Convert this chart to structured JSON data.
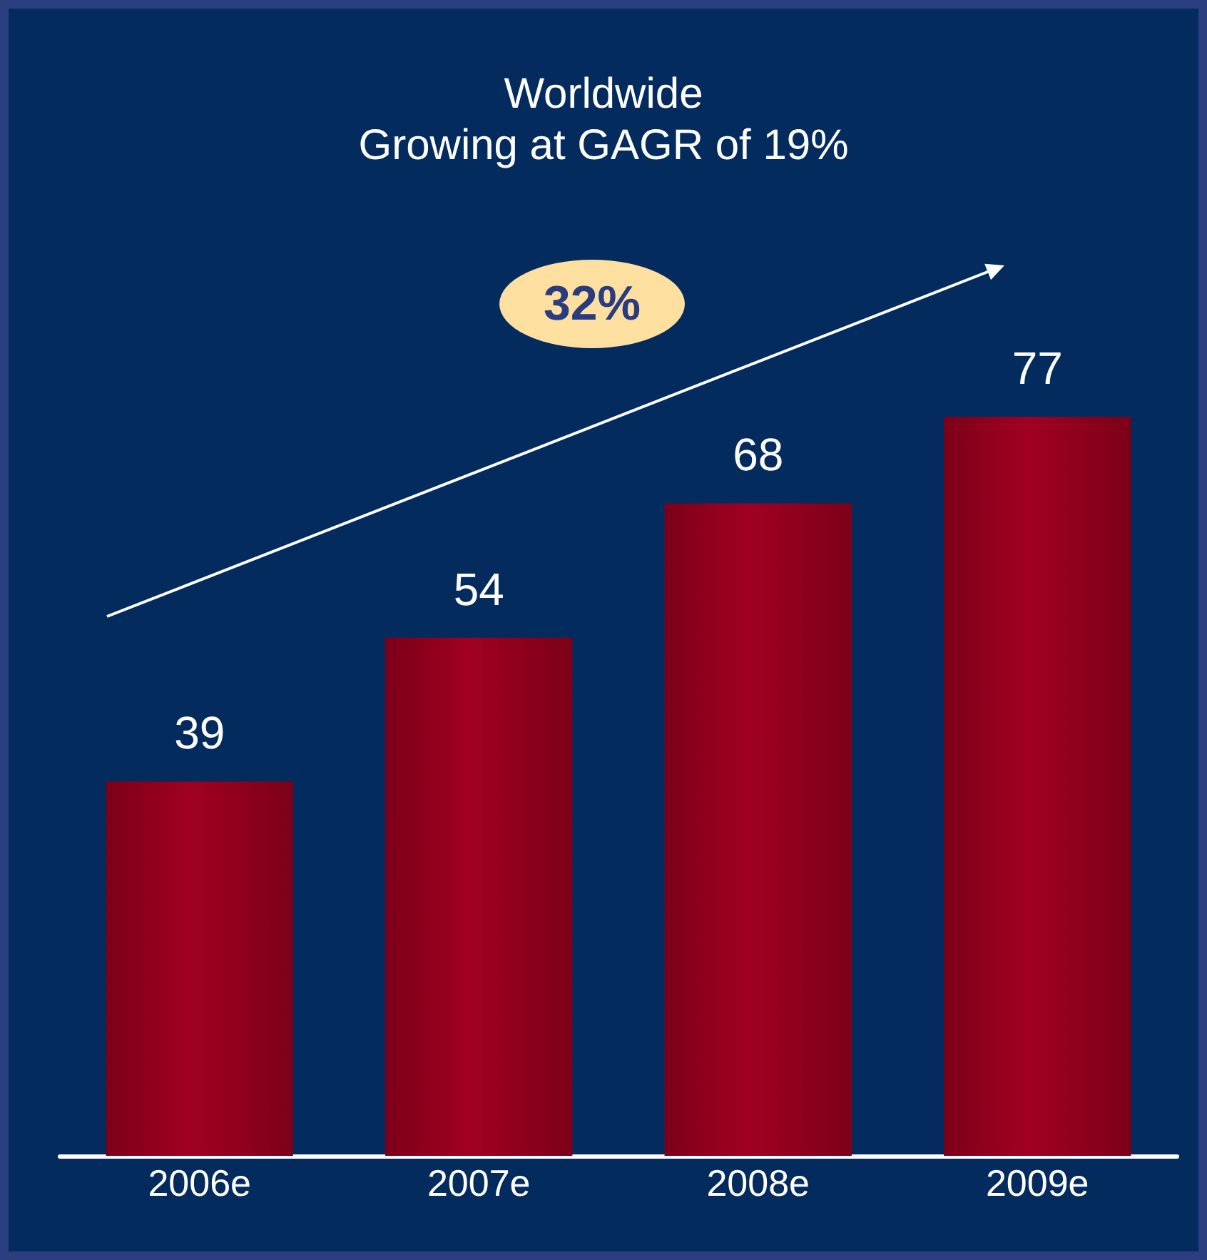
{
  "chart_data": {
    "type": "bar",
    "title": "Worldwide",
    "subtitle": "Growing at GAGR of 19%",
    "categories": [
      "2006e",
      "2007e",
      "2008e",
      "2009e"
    ],
    "values": [
      39,
      54,
      68,
      77
    ],
    "color": "#a10022",
    "data_labels": true,
    "annotations": [
      "32%"
    ]
  }
}
